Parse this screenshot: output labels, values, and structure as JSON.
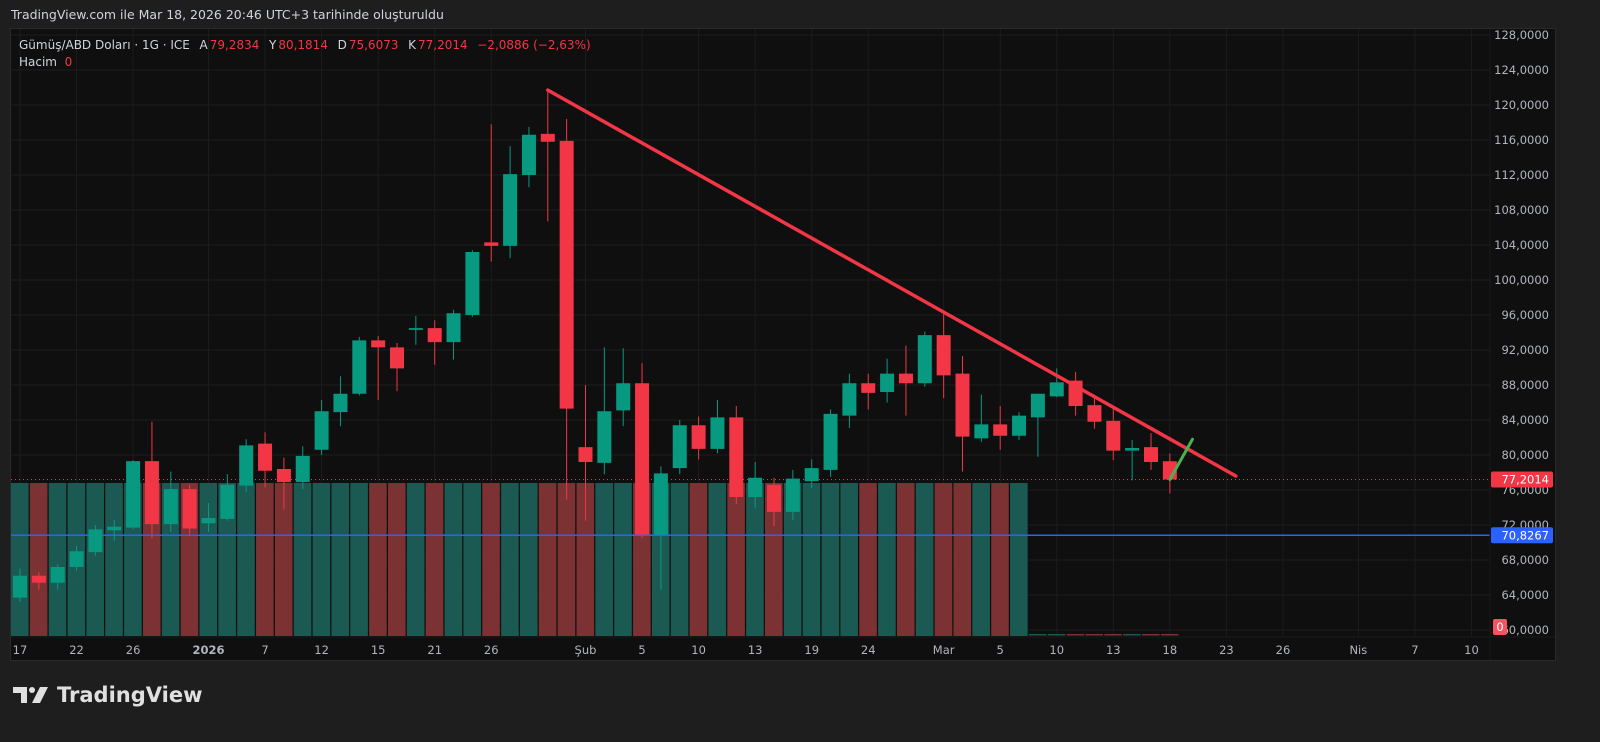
{
  "snapshot_title": "TradingView.com ile Mar 18, 2026 20:46 UTC+3 tarihinde oluşturuldu",
  "legend": {
    "symbol": "Gümüş/ABD Doları · 1G · ICE",
    "open_label": "A",
    "open": "79,2834",
    "high_label": "Y",
    "high": "80,1814",
    "low_label": "D",
    "low": "75,6073",
    "close_label": "K",
    "close": "77,2014",
    "change": "−2,0886 (−2,63%)",
    "volume_label": "Hacim",
    "volume_value": "0"
  },
  "colors": {
    "up": "#089981",
    "down": "#f23645",
    "vol_up": "#1b5a53",
    "vol_down": "#7c3232",
    "trendline": "#f23645",
    "green_line": "#4caf50",
    "blue_line": "#2962ff"
  },
  "price_axis": {
    "labels": [
      "128,0000",
      "124,0000",
      "120,0000",
      "116,0000",
      "112,0000",
      "108,0000",
      "104,0000",
      "100,0000",
      "96,0000",
      "92,0000",
      "88,0000",
      "84,0000",
      "80,0000",
      "76,0000",
      "72,0000",
      "68,0000",
      "64,0000",
      "60,0000"
    ],
    "values": [
      128,
      124,
      120,
      116,
      112,
      108,
      104,
      100,
      96,
      92,
      88,
      84,
      80,
      76,
      72,
      68,
      64,
      60
    ],
    "last_price_badge": "77,2014",
    "last_price": 77.2014,
    "horizontal_line_badge": "70,8267",
    "horizontal_line_price": 70.8267,
    "volume_badge": "0"
  },
  "time_axis": [
    {
      "label": "17",
      "index": 0
    },
    {
      "label": "22",
      "index": 3
    },
    {
      "label": "26",
      "index": 6
    },
    {
      "label": "2026",
      "index": 10,
      "bold": true
    },
    {
      "label": "7",
      "index": 13
    },
    {
      "label": "12",
      "index": 16
    },
    {
      "label": "15",
      "index": 19
    },
    {
      "label": "21",
      "index": 22
    },
    {
      "label": "26",
      "index": 25
    },
    {
      "label": "Şub",
      "index": 30
    },
    {
      "label": "5",
      "index": 33
    },
    {
      "label": "10",
      "index": 36
    },
    {
      "label": "13",
      "index": 39
    },
    {
      "label": "19",
      "index": 42
    },
    {
      "label": "24",
      "index": 45
    },
    {
      "label": "Mar",
      "index": 49
    },
    {
      "label": "5",
      "index": 52
    },
    {
      "label": "10",
      "index": 55
    },
    {
      "label": "13",
      "index": 58
    },
    {
      "label": "18",
      "index": 61
    },
    {
      "label": "23",
      "index": 64
    },
    {
      "label": "26",
      "index": 67
    },
    {
      "label": "Nis",
      "index": 71
    },
    {
      "label": "7",
      "index": 74
    },
    {
      "label": "10",
      "index": 77
    }
  ],
  "chart_data": {
    "type": "candlestick",
    "ohlc": [
      [
        63.7,
        67.0,
        63.2,
        66.2
      ],
      [
        66.2,
        66.6,
        64.6,
        65.4
      ],
      [
        65.4,
        67.5,
        64.6,
        67.2
      ],
      [
        67.2,
        69.6,
        66.8,
        69.0
      ],
      [
        68.9,
        72.0,
        68.5,
        71.5
      ],
      [
        71.4,
        72.6,
        70.2,
        71.8
      ],
      [
        71.7,
        79.4,
        71.5,
        79.3
      ],
      [
        79.3,
        83.8,
        70.5,
        72.1
      ],
      [
        72.1,
        78.1,
        71.2,
        76.1
      ],
      [
        76.1,
        76.6,
        70.7,
        71.6
      ],
      [
        72.2,
        74.5,
        71.2,
        72.8
      ],
      [
        72.7,
        77.8,
        72.5,
        76.6
      ],
      [
        76.5,
        81.8,
        75.8,
        81.1
      ],
      [
        81.3,
        82.6,
        76.3,
        78.2
      ],
      [
        78.4,
        79.7,
        73.8,
        76.9
      ],
      [
        76.9,
        81.0,
        76.1,
        79.9
      ],
      [
        80.6,
        86.3,
        80.0,
        85.0
      ],
      [
        84.9,
        89.0,
        83.3,
        87.0
      ],
      [
        87.0,
        93.5,
        86.8,
        93.1
      ],
      [
        93.1,
        93.6,
        86.3,
        92.3
      ],
      [
        92.3,
        92.8,
        87.3,
        89.9
      ],
      [
        94.3,
        95.9,
        92.6,
        94.5
      ],
      [
        94.5,
        95.4,
        90.3,
        92.9
      ],
      [
        92.9,
        96.6,
        90.9,
        96.2
      ],
      [
        96.0,
        103.4,
        95.8,
        103.2
      ],
      [
        104.3,
        117.8,
        102.1,
        103.9
      ],
      [
        103.9,
        115.3,
        102.5,
        112.1
      ],
      [
        112.0,
        117.5,
        110.6,
        116.6
      ],
      [
        116.7,
        121.7,
        106.7,
        115.8
      ],
      [
        115.9,
        118.4,
        74.9,
        85.3
      ],
      [
        80.9,
        88.0,
        72.5,
        79.2
      ],
      [
        79.1,
        92.3,
        77.8,
        85.0
      ],
      [
        85.1,
        92.2,
        83.3,
        88.2
      ],
      [
        88.2,
        90.5,
        70.5,
        70.9
      ],
      [
        70.9,
        78.7,
        64.6,
        77.9
      ],
      [
        78.5,
        84.0,
        77.8,
        83.4
      ],
      [
        83.4,
        84.4,
        79.5,
        80.7
      ],
      [
        80.7,
        86.3,
        80.2,
        84.3
      ],
      [
        84.3,
        85.6,
        74.4,
        75.2
      ],
      [
        75.2,
        79.2,
        73.9,
        77.4
      ],
      [
        76.6,
        77.4,
        71.9,
        73.5
      ],
      [
        73.5,
        78.3,
        72.6,
        77.3
      ],
      [
        77.0,
        79.5,
        76.2,
        78.5
      ],
      [
        78.3,
        85.2,
        77.5,
        84.7
      ],
      [
        84.5,
        89.3,
        83.1,
        88.2
      ],
      [
        88.2,
        89.3,
        85.2,
        87.1
      ],
      [
        87.2,
        91.0,
        86.0,
        89.3
      ],
      [
        89.3,
        92.5,
        84.5,
        88.2
      ],
      [
        88.2,
        94.1,
        87.8,
        93.7
      ],
      [
        93.7,
        96.3,
        86.5,
        89.1
      ],
      [
        89.3,
        91.3,
        78.1,
        82.1
      ],
      [
        81.9,
        86.9,
        81.5,
        83.5
      ],
      [
        83.5,
        85.6,
        80.6,
        82.2
      ],
      [
        82.2,
        84.9,
        81.7,
        84.5
      ],
      [
        84.3,
        87.0,
        79.8,
        87.0
      ],
      [
        86.7,
        89.9,
        86.6,
        88.3
      ],
      [
        88.5,
        89.5,
        84.5,
        85.6
      ],
      [
        85.7,
        86.9,
        83.0,
        83.8
      ],
      [
        83.9,
        85.5,
        79.4,
        80.5
      ],
      [
        80.5,
        81.7,
        77.1,
        80.8
      ],
      [
        80.9,
        82.5,
        78.3,
        79.2
      ],
      [
        79.2834,
        80.1814,
        75.6073,
        77.2014
      ]
    ],
    "volume_relative": [
      1,
      1,
      1,
      1,
      1,
      1,
      1,
      1,
      1,
      1,
      1,
      1,
      1,
      1,
      1,
      1,
      1,
      1,
      1,
      1,
      1,
      1,
      1,
      1,
      1,
      1,
      1,
      1,
      1,
      1,
      1,
      1,
      1,
      1,
      1,
      1,
      1,
      1,
      1,
      1,
      1,
      1,
      1,
      1,
      1,
      1,
      1,
      1,
      1,
      1,
      1,
      1,
      1,
      1,
      0,
      0,
      0,
      0,
      0,
      0,
      0,
      0
    ],
    "ylim": [
      58,
      130
    ],
    "drawings": {
      "trendline": [
        [
          28,
          121.7
        ],
        [
          64.5,
          77.6
        ]
      ],
      "green_segment": [
        [
          61,
          77.2
        ],
        [
          62.2,
          81.8
        ]
      ]
    }
  },
  "footer": {
    "brand": "TradingView"
  }
}
